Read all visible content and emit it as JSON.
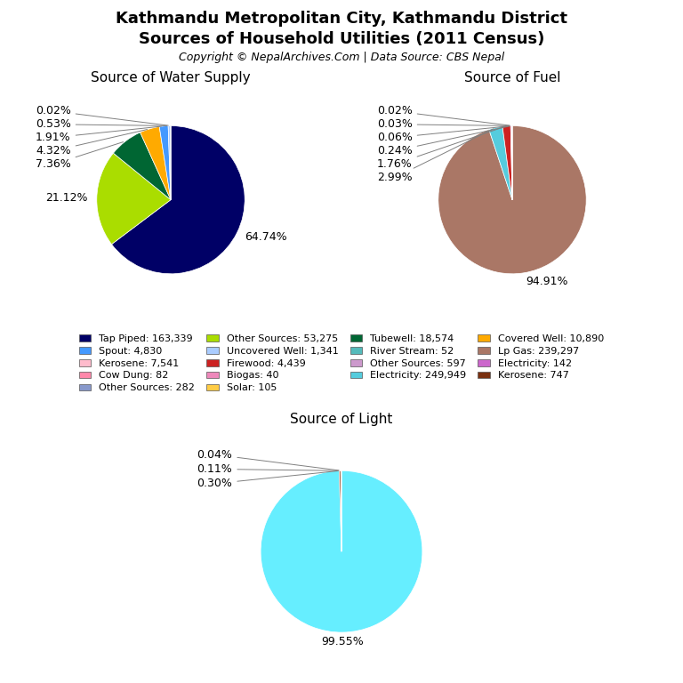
{
  "title": "Kathmandu Metropolitan City, Kathmandu District",
  "subtitle": "Sources of Household Utilities (2011 Census)",
  "annotations": [
    "Copyright © NepalArchives.Com | Data Source: CBS Nepal"
  ],
  "legend_entries": [
    {
      "name": "Tap Piped: 163,339",
      "color": "#000066"
    },
    {
      "name": "Other Sources: 53,275",
      "color": "#aadd00"
    },
    {
      "name": "Tubewell: 18,574",
      "color": "#006633"
    },
    {
      "name": "Covered Well: 10,890",
      "color": "#ffaa00"
    },
    {
      "name": "Spout: 4,830",
      "color": "#4499ff"
    },
    {
      "name": "Uncovered Well: 1,341",
      "color": "#aaccff"
    },
    {
      "name": "River Stream: 52",
      "color": "#55bbbb"
    },
    {
      "name": "Lp Gas: 239,297",
      "color": "#aa7766"
    },
    {
      "name": "Kerosene: 7,541",
      "color": "#ffbbcc"
    },
    {
      "name": "Firewood: 4,439",
      "color": "#cc2222"
    },
    {
      "name": "Other Sources: 597",
      "color": "#cc99cc"
    },
    {
      "name": "Electricity: 142",
      "color": "#cc66cc"
    },
    {
      "name": "Cow Dung: 82",
      "color": "#ff88aa"
    },
    {
      "name": "Biogas: 40",
      "color": "#ee88bb"
    },
    {
      "name": "Electricity: 249,949",
      "color": "#55ccdd"
    },
    {
      "name": "Kerosene: 747",
      "color": "#7a3010"
    },
    {
      "name": "Other Sources: 282",
      "color": "#8899cc"
    },
    {
      "name": "Solar: 105",
      "color": "#ffcc44"
    }
  ],
  "chart_data": [
    {
      "type": "pie",
      "title": "Source of Water Supply",
      "values": [
        64.74,
        21.12,
        7.36,
        4.32,
        1.91,
        0.53,
        0.02
      ],
      "value_labels": [
        "64.74%",
        "21.12%",
        "7.36%",
        "4.32%",
        "1.91%",
        "0.53%",
        "0.02%"
      ],
      "colors": [
        "#000066",
        "#aadd00",
        "#006633",
        "#ffaa00",
        "#4499ff",
        "#aaccff",
        "#55bbbb"
      ]
    },
    {
      "type": "pie",
      "title": "Source of Fuel",
      "values": [
        94.91,
        2.99,
        1.76,
        0.24,
        0.06,
        0.03,
        0.02
      ],
      "value_labels": [
        "94.91%",
        "2.99%",
        "1.76%",
        "0.24%",
        "0.06%",
        "0.03%",
        "0.02%"
      ],
      "colors": [
        "#aa7766",
        "#55ccdd",
        "#cc2222",
        "#cc99cc",
        "#ffbbbb",
        "#ff88aa",
        "#cc66cc"
      ]
    },
    {
      "type": "pie",
      "title": "Source of Light",
      "values": [
        99.55,
        0.3,
        0.11,
        0.04
      ],
      "value_labels": [
        "99.55%",
        "0.30%",
        "0.11%",
        "0.04%"
      ],
      "colors": [
        "#66eeff",
        "#7a3010",
        "#9966cc",
        "#ffcc44"
      ]
    }
  ]
}
